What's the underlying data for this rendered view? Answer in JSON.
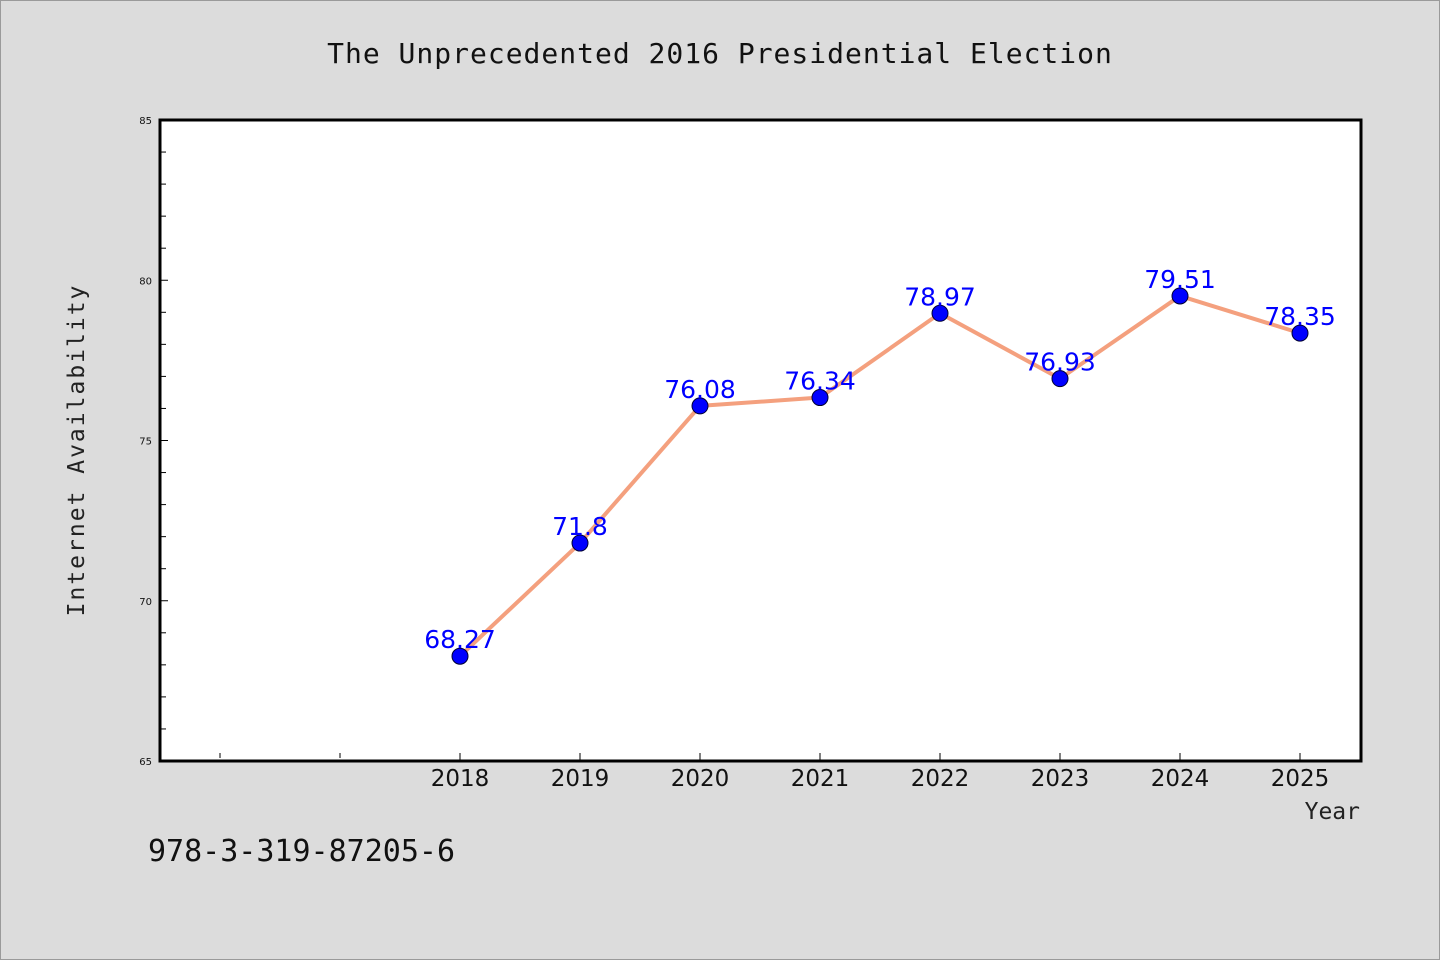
{
  "chart_data": {
    "type": "line",
    "title": "The Unprecedented 2016 Presidential Election",
    "xlabel": "Year",
    "ylabel": "Internet Availability",
    "categories": [
      "2018",
      "2019",
      "2020",
      "2021",
      "2022",
      "2023",
      "2024",
      "2025"
    ],
    "series": [
      {
        "values": [
          68.27,
          71.8,
          76.08,
          76.34,
          78.97,
          76.93,
          79.51,
          78.35
        ],
        "labels": [
          "68.27",
          "71.8",
          "76.08",
          "76.34",
          "78.97",
          "76.93",
          "79.51",
          "78.35"
        ]
      }
    ],
    "ylim": [
      65,
      85
    ],
    "yticks": [
      "65",
      "70",
      "75",
      "80",
      "85"
    ],
    "grid": false,
    "colors": {
      "line": "#f4a07e",
      "marker": "#0000ff",
      "data_label": "#0000ff",
      "background": "#dcdcdc",
      "plot_background": "#ffffff"
    }
  },
  "footnote": "978-3-319-87205-6"
}
